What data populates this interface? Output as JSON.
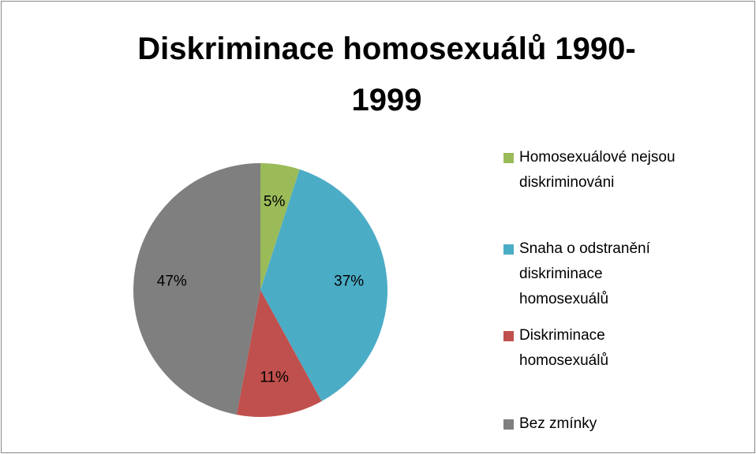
{
  "chart_data": {
    "type": "pie",
    "title": "Diskriminace homosexuálů 1990-1999",
    "categories": [
      "Homosexuálové nejsou diskriminováni",
      "Snaha o odstranění diskriminace homosexuálů",
      "Diskriminace homosexuálů",
      "Bez zmínky"
    ],
    "values": [
      5,
      37,
      11,
      47
    ],
    "value_labels": [
      "5%",
      "37%",
      "11%",
      "47%"
    ],
    "colors": [
      "#9bbb59",
      "#4bacc6",
      "#c0504d",
      "#7f7f7f"
    ],
    "legend": "right"
  }
}
